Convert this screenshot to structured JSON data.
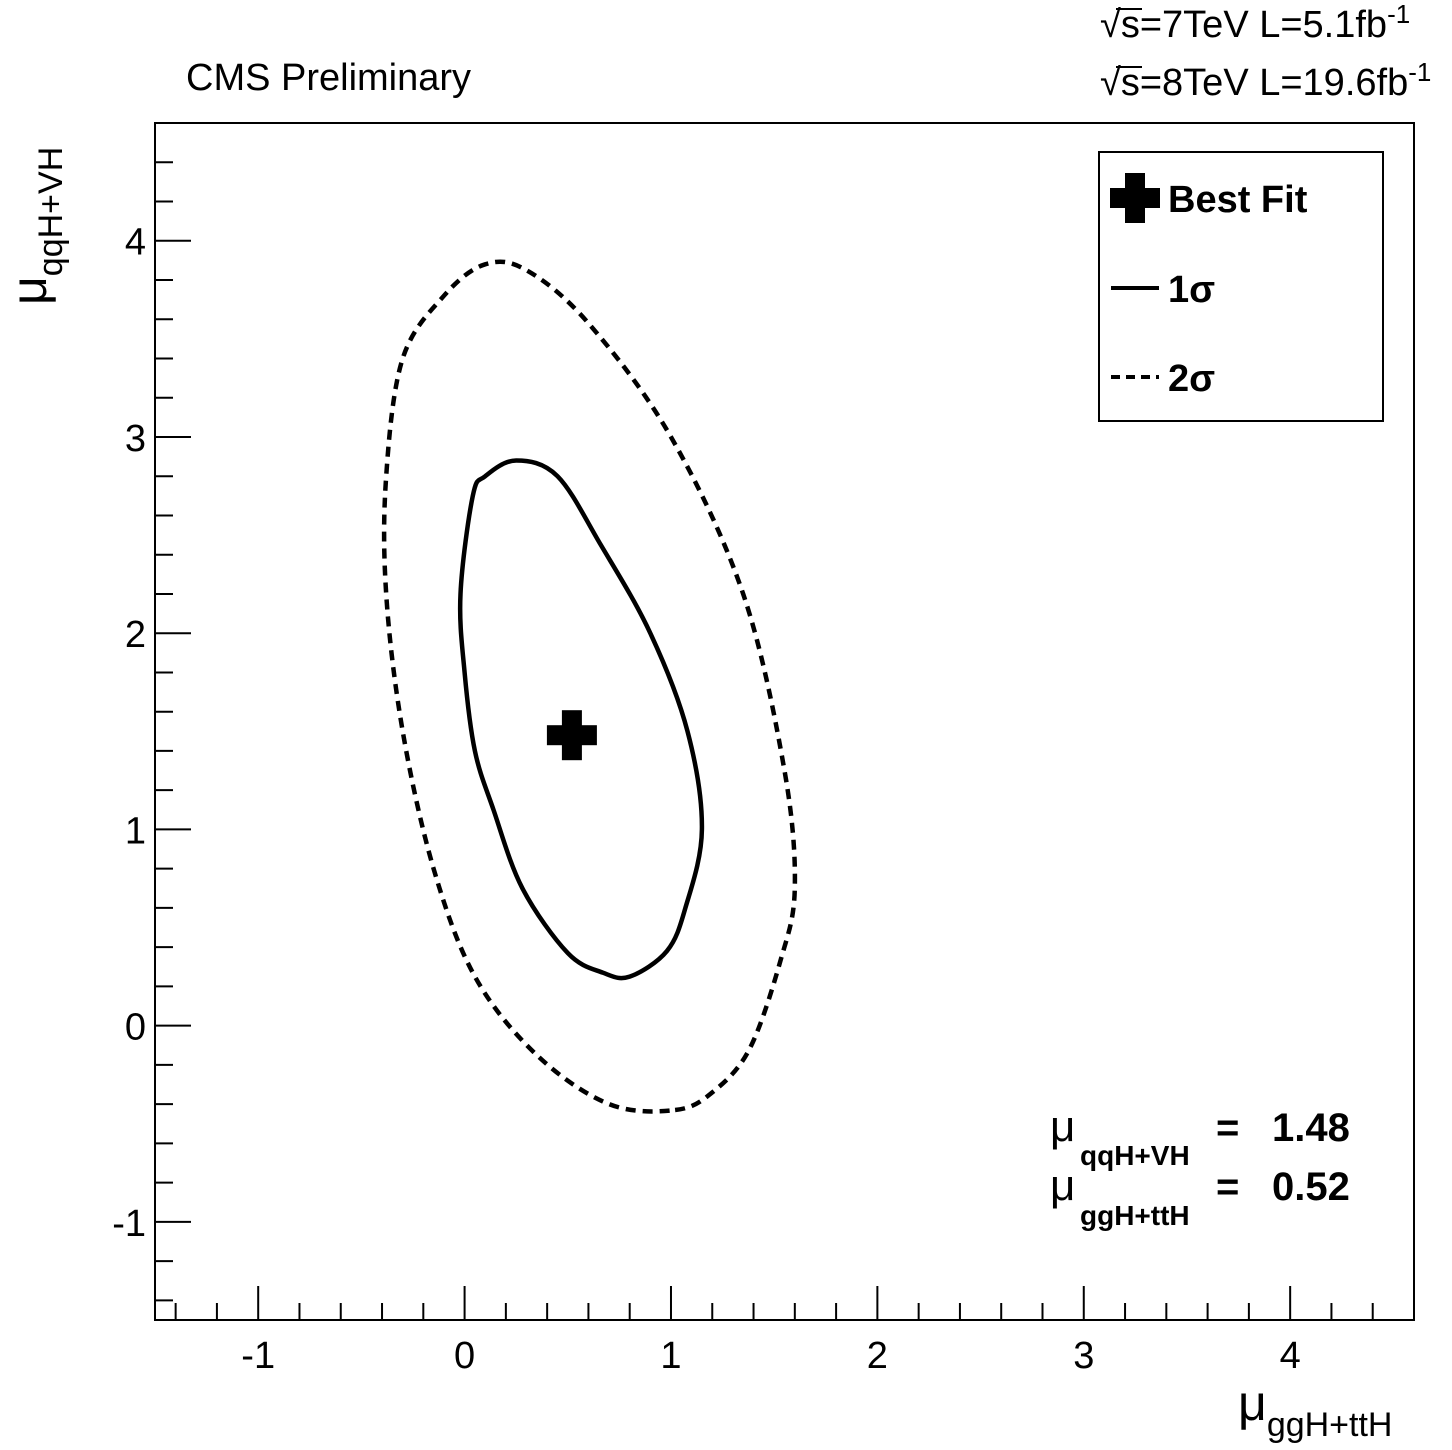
{
  "chart_data": {
    "type": "contour",
    "header": {
      "experiment": "CMS Preliminary",
      "lumi_7": {
        "sqrt": "√",
        "s_label": "s",
        "rest": "=7TeV L=5.1fb",
        "sup": "-1"
      },
      "lumi_8": {
        "sqrt": "√",
        "s_label": "s",
        "rest": "=8TeV L=19.6fb",
        "sup": "-1"
      }
    },
    "xaxis": {
      "mu": "μ",
      "subscript": "ggH+ttH",
      "range": [
        -1.5,
        4.6
      ],
      "ticks": [
        "-1",
        "0",
        "1",
        "2",
        "3",
        "4"
      ]
    },
    "yaxis": {
      "mu": "μ",
      "subscript": "qqH+VH",
      "range": [
        -1.5,
        4.6
      ],
      "ticks": [
        "-1",
        "0",
        "1",
        "2",
        "3",
        "4"
      ]
    },
    "grid": false,
    "legend": {
      "position": "top-right",
      "entries": [
        {
          "label": "Best Fit",
          "style": "cross"
        },
        {
          "label": "1σ",
          "style": "solid"
        },
        {
          "label": "2σ",
          "style": "dashed"
        }
      ]
    },
    "best_fit": {
      "x": 0.52,
      "y": 1.48
    },
    "results": [
      {
        "mu": "μ",
        "subscript": "qqH+VH",
        "eq": "=",
        "value": "1.48"
      },
      {
        "mu": "μ",
        "subscript": "ggH+ttH",
        "eq": "=",
        "value": "0.52"
      }
    ],
    "series": [
      {
        "name": "1σ",
        "style": "solid",
        "points": [
          [
            0.8,
            0.25
          ],
          [
            0.98,
            0.38
          ],
          [
            1.07,
            0.6
          ],
          [
            1.15,
            1.0
          ],
          [
            1.08,
            1.5
          ],
          [
            0.9,
            2.0
          ],
          [
            0.66,
            2.45
          ],
          [
            0.45,
            2.8
          ],
          [
            0.25,
            2.88
          ],
          [
            0.1,
            2.8
          ],
          [
            0.04,
            2.7
          ],
          [
            -0.02,
            2.2
          ],
          [
            0.0,
            1.8
          ],
          [
            0.05,
            1.4
          ],
          [
            0.14,
            1.1
          ],
          [
            0.28,
            0.7
          ],
          [
            0.5,
            0.37
          ],
          [
            0.67,
            0.27
          ],
          [
            0.8,
            0.25
          ]
        ]
      },
      {
        "name": "2σ",
        "style": "dashed",
        "points": [
          [
            1.02,
            -0.43
          ],
          [
            1.2,
            -0.34
          ],
          [
            1.38,
            -0.12
          ],
          [
            1.53,
            0.33
          ],
          [
            1.6,
            0.7
          ],
          [
            1.55,
            1.3
          ],
          [
            1.35,
            2.2
          ],
          [
            1.0,
            3.0
          ],
          [
            0.6,
            3.58
          ],
          [
            0.3,
            3.85
          ],
          [
            0.1,
            3.88
          ],
          [
            -0.1,
            3.72
          ],
          [
            -0.3,
            3.4
          ],
          [
            -0.38,
            2.8
          ],
          [
            -0.38,
            2.2
          ],
          [
            -0.3,
            1.5
          ],
          [
            -0.15,
            0.8
          ],
          [
            0.05,
            0.25
          ],
          [
            0.35,
            -0.15
          ],
          [
            0.7,
            -0.4
          ],
          [
            1.02,
            -0.43
          ]
        ]
      }
    ]
  }
}
